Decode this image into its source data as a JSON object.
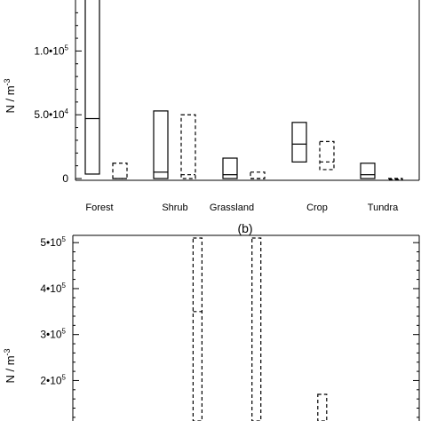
{
  "chart_data": [
    {
      "type": "boxplot",
      "panel": "a",
      "title": "",
      "xlabel": "",
      "ylabel": "N / m",
      "ylabel_sup": "-3",
      "ylim": [
        0,
        140000
      ],
      "yticks": [
        {
          "value": 0,
          "mant": "0",
          "exp": ""
        },
        {
          "value": 50000,
          "mant": "5.0•10",
          "exp": "4"
        },
        {
          "value": 100000,
          "mant": "1.0•10",
          "exp": "5"
        }
      ],
      "categories": [
        "Forest",
        "Shrub",
        "Grassland",
        "Crop",
        "Tundra"
      ],
      "series": [
        {
          "style": "solid",
          "boxes": [
            {
              "low": 3500,
              "median": 47000,
              "high": 145000
            },
            {
              "low": 0,
              "median": 5000,
              "high": 53000
            },
            {
              "low": 0,
              "median": 3000,
              "high": 16000
            },
            {
              "low": 13000,
              "median": 27000,
              "high": 44000
            },
            {
              "low": 0,
              "median": 3000,
              "high": 12000
            }
          ]
        },
        {
          "style": "dashed",
          "boxes": [
            {
              "low": 0,
              "median": 0,
              "high": 12000
            },
            {
              "low": 0,
              "median": 3000,
              "high": 50000
            },
            {
              "low": 0,
              "median": 0,
              "high": 5000
            },
            {
              "low": 7000,
              "median": 13000,
              "high": 29000
            },
            {
              "low": 0,
              "median": 0,
              "high": 0
            }
          ]
        }
      ]
    },
    {
      "type": "boxplot",
      "panel": "b",
      "title": "(b)",
      "xlabel": "",
      "ylabel": "N / m",
      "ylabel_sup": "-3",
      "ylim": [
        112000,
        510000
      ],
      "yticks": [
        {
          "value": 200000,
          "mant": "2•10",
          "exp": "5"
        },
        {
          "value": 300000,
          "mant": "3•10",
          "exp": "5"
        },
        {
          "value": 400000,
          "mant": "4•10",
          "exp": "5"
        },
        {
          "value": 500000,
          "mant": "5•10",
          "exp": "5"
        }
      ],
      "visible_boxes": [
        {
          "style": "dashed",
          "x_frac": 0.36,
          "low": 112000,
          "median": 350000,
          "high": 510000
        },
        {
          "style": "dashed",
          "x_frac": 0.53,
          "low": 112000,
          "median": null,
          "high": 510000
        },
        {
          "style": "dashed",
          "x_frac": 0.72,
          "low": 112000,
          "median": null,
          "high": 170000
        }
      ]
    }
  ]
}
